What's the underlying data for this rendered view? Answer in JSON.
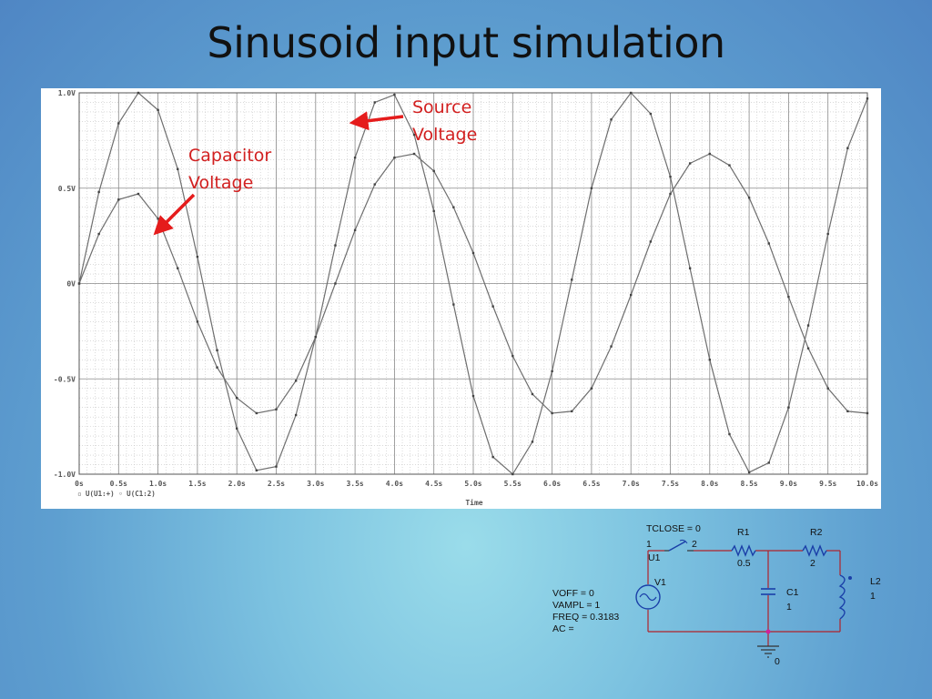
{
  "slide": {
    "title": "Sinusoid input simulation"
  },
  "annotations": {
    "source": "Source\nVoltage",
    "capacitor": "Capacitor\nVoltage"
  },
  "chart_data": {
    "type": "line",
    "xlabel": "Time",
    "ylabel": "",
    "xlim": [
      0,
      10
    ],
    "ylim": [
      -1.0,
      1.0
    ],
    "grid": true,
    "x_ticks": [
      0,
      0.5,
      1.0,
      1.5,
      2.0,
      2.5,
      3.0,
      3.5,
      4.0,
      4.5,
      5.0,
      5.5,
      6.0,
      6.5,
      7.0,
      7.5,
      8.0,
      8.5,
      9.0,
      9.5,
      10.0
    ],
    "x_tick_labels": [
      "0s",
      "0.5s",
      "1.0s",
      "1.5s",
      "2.0s",
      "2.5s",
      "3.0s",
      "3.5s",
      "4.0s",
      "4.5s",
      "5.0s",
      "5.5s",
      "6.0s",
      "6.5s",
      "7.0s",
      "7.5s",
      "8.0s",
      "8.5s",
      "9.0s",
      "9.5s",
      "10.0s"
    ],
    "y_ticks": [
      1.0,
      0.5,
      0,
      -0.5,
      -1.0
    ],
    "y_tick_labels": [
      "1.0V",
      "0.5V",
      "0V",
      "-0.5V",
      "-1.0V"
    ],
    "legend_text": "▫ U(U1:+)  ◦ U(C1:2)",
    "series": [
      {
        "name": "U(U1:+)",
        "color": "#6e6e6e",
        "x": [
          0,
          0.25,
          0.5,
          0.75,
          1.0,
          1.25,
          1.5,
          1.75,
          2.0,
          2.25,
          2.5,
          2.75,
          3.0,
          3.25,
          3.5,
          3.75,
          4.0,
          4.25,
          4.5,
          4.75,
          5.0,
          5.25,
          5.5,
          5.75,
          6.0,
          6.25,
          6.5,
          6.75,
          7.0,
          7.25,
          7.5,
          7.75,
          8.0,
          8.25,
          8.5,
          8.75,
          9.0,
          9.25,
          9.5,
          9.75,
          10.0
        ],
        "y": [
          0.0,
          0.48,
          0.84,
          1.0,
          0.91,
          0.6,
          0.14,
          -0.35,
          -0.76,
          -0.98,
          -0.96,
          -0.69,
          -0.28,
          0.2,
          0.66,
          0.95,
          0.99,
          0.78,
          0.38,
          -0.11,
          -0.59,
          -0.91,
          -1.0,
          -0.83,
          -0.46,
          0.02,
          0.5,
          0.86,
          1.0,
          0.89,
          0.56,
          0.08,
          -0.4,
          -0.79,
          -0.99,
          -0.94,
          -0.65,
          -0.22,
          0.26,
          0.71,
          0.97
        ]
      },
      {
        "name": "U(C1:2)",
        "color": "#6e6e6e",
        "x": [
          0,
          0.25,
          0.5,
          0.75,
          1.0,
          1.25,
          1.5,
          1.75,
          2.0,
          2.25,
          2.5,
          2.75,
          3.0,
          3.25,
          3.5,
          3.75,
          4.0,
          4.25,
          4.5,
          4.75,
          5.0,
          5.25,
          5.5,
          5.75,
          6.0,
          6.25,
          6.5,
          6.75,
          7.0,
          7.25,
          7.5,
          7.75,
          8.0,
          8.25,
          8.5,
          8.75,
          9.0,
          9.25,
          9.5,
          9.75,
          10.0
        ],
        "y": [
          0.0,
          0.26,
          0.44,
          0.47,
          0.34,
          0.08,
          -0.2,
          -0.44,
          -0.6,
          -0.68,
          -0.66,
          -0.51,
          -0.28,
          -0.0,
          0.28,
          0.52,
          0.66,
          0.68,
          0.59,
          0.4,
          0.16,
          -0.12,
          -0.38,
          -0.58,
          -0.68,
          -0.67,
          -0.55,
          -0.33,
          -0.06,
          0.22,
          0.47,
          0.63,
          0.68,
          0.62,
          0.45,
          0.21,
          -0.07,
          -0.34,
          -0.55,
          -0.67,
          -0.68
        ]
      }
    ]
  },
  "schematic": {
    "switch": {
      "param": "TCLOSE = 0",
      "pin1": "1",
      "pin2": "2",
      "name": "U1"
    },
    "r1": {
      "name": "R1",
      "value": "0.5"
    },
    "r2": {
      "name": "R2",
      "value": "2"
    },
    "c1": {
      "name": "C1",
      "value": "1"
    },
    "l2": {
      "name": "L2",
      "value": "1"
    },
    "v1": {
      "name": "V1",
      "params": [
        "VOFF = 0",
        "VAMPL = 1",
        "FREQ = 0.3183",
        "AC ="
      ]
    },
    "ground": {
      "label": "0"
    }
  }
}
